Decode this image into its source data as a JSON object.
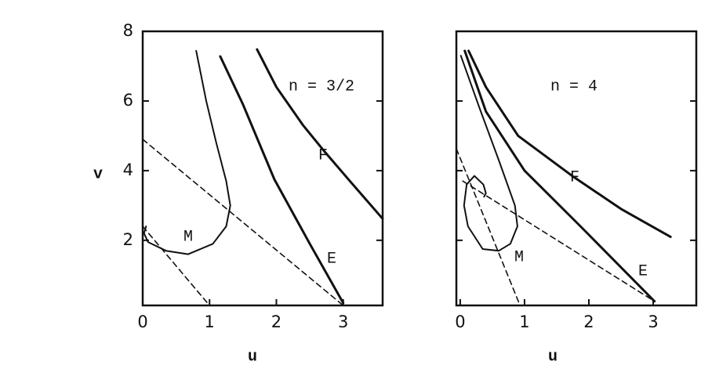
{
  "chart_data": [
    {
      "type": "line",
      "annotation": "n = 3/2",
      "xlabel": "u",
      "ylabel": "v",
      "xlim": [
        0,
        3.59
      ],
      "ylim": [
        0.13,
        8
      ],
      "xticks": [
        0,
        1,
        2,
        3
      ],
      "yticks": [
        2,
        4,
        6,
        8
      ],
      "show_ytick_labels": true,
      "series": [
        {
          "name": "M",
          "color": "#111",
          "width": 2,
          "x": [
            0.8,
            0.95,
            1.1,
            1.25,
            1.31,
            1.25,
            1.05,
            0.68,
            0.35,
            0.08,
            0.02,
            0.05
          ],
          "values": [
            7.44,
            6.0,
            4.8,
            3.7,
            3.0,
            2.4,
            1.9,
            1.6,
            1.7,
            1.95,
            2.2,
            2.4
          ]
        },
        {
          "name": "E",
          "color": "#111",
          "width": 3,
          "x": [
            1.16,
            1.5,
            1.97,
            2.5,
            3.0
          ],
          "values": [
            7.28,
            5.9,
            3.75,
            1.9,
            0.2
          ]
        },
        {
          "name": "F",
          "color": "#111",
          "width": 3,
          "x": [
            1.71,
            2.0,
            2.4,
            2.72,
            3.1,
            3.59
          ],
          "values": [
            7.48,
            6.4,
            5.3,
            4.55,
            3.7,
            2.62
          ]
        },
        {
          "color": "#111",
          "width": 1.6,
          "dashed": true,
          "x": [
            0,
            3.0
          ],
          "values": [
            4.9,
            0.13
          ]
        },
        {
          "color": "#111",
          "width": 1.6,
          "dashed": true,
          "x": [
            0,
            1.0
          ],
          "values": [
            2.4,
            0.13
          ]
        }
      ]
    },
    {
      "type": "line",
      "annotation": "n = 4",
      "xlabel": "u",
      "xlim": [
        -0.06,
        3.67
      ],
      "ylim": [
        0.13,
        8
      ],
      "xticks": [
        0,
        1,
        2,
        3
      ],
      "yticks": [
        2,
        4,
        6,
        8
      ],
      "show_ytick_labels": false,
      "series": [
        {
          "name": "M",
          "color": "#111",
          "width": 2,
          "x": [
            0.01,
            0.3,
            0.6,
            0.85,
            0.89,
            0.78,
            0.6,
            0.35,
            0.12,
            0.06,
            0.1,
            0.22,
            0.36,
            0.4,
            0.37
          ],
          "values": [
            7.3,
            5.8,
            4.3,
            3.0,
            2.4,
            1.9,
            1.7,
            1.75,
            2.4,
            3.0,
            3.6,
            3.85,
            3.6,
            3.35,
            3.25
          ]
        },
        {
          "name": "E",
          "color": "#111",
          "width": 3,
          "x": [
            0.07,
            0.4,
            1.0,
            1.87,
            3.02
          ],
          "values": [
            7.44,
            5.7,
            4.0,
            2.4,
            0.25
          ]
        },
        {
          "name": "F",
          "color": "#111",
          "width": 3,
          "x": [
            0.13,
            0.4,
            0.9,
            1.74,
            2.5,
            3.27
          ],
          "values": [
            7.44,
            6.4,
            5.0,
            3.85,
            2.9,
            2.1
          ]
        },
        {
          "color": "#111",
          "width": 1.6,
          "dashed": true,
          "x": [
            -0.06,
            0.93
          ],
          "values": [
            4.63,
            0.13
          ]
        },
        {
          "color": "#111",
          "width": 1.6,
          "dashed": true,
          "x": [
            0.04,
            3.02
          ],
          "values": [
            3.7,
            0.25
          ]
        }
      ]
    }
  ]
}
